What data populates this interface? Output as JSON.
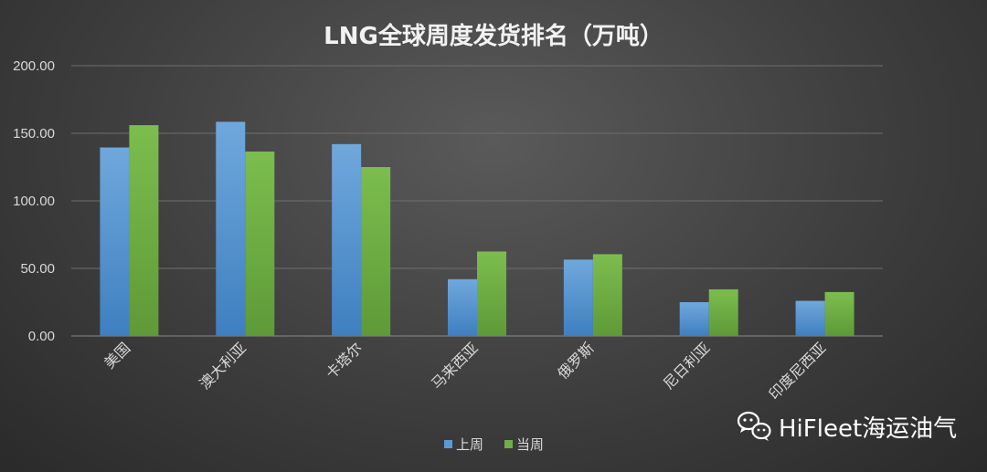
{
  "chart_data": {
    "type": "bar",
    "title": "LNG全球周度发货排名（万吨）",
    "categories": [
      "美国",
      "澳大利亚",
      "卡塔尔",
      "马来西亚",
      "俄罗斯",
      "尼日利亚",
      "印度尼西亚"
    ],
    "series": [
      {
        "name": "上周",
        "color": "#5b9bd5",
        "values": [
          139.5,
          158.5,
          142.0,
          42.0,
          56.5,
          25.0,
          26.0
        ]
      },
      {
        "name": "当周",
        "color": "#70ad47",
        "values": [
          156.0,
          136.5,
          125.0,
          62.5,
          60.5,
          34.5,
          32.5
        ]
      }
    ],
    "ylim": [
      0,
      200
    ],
    "yticks": [
      0,
      50,
      100,
      150,
      200
    ],
    "ytick_labels": [
      "0.00",
      "50.00",
      "100.00",
      "150.00",
      "200.00"
    ],
    "xlabel": "",
    "ylabel": "",
    "grid": true,
    "legend": "bottom-center"
  },
  "watermark": {
    "text": "HiFleet海运油气",
    "icon": "wechat-icon"
  }
}
